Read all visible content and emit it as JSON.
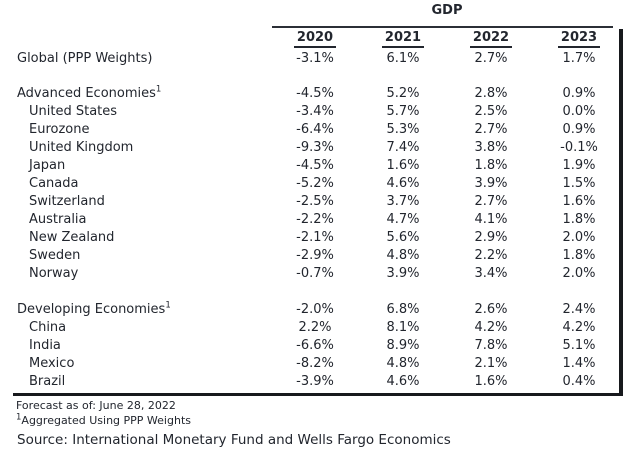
{
  "colors": {
    "background": "#ffffff",
    "text": "#22262e",
    "rule": "#17191d"
  },
  "chart_data": {
    "type": "table",
    "title": "GDP",
    "columns": [
      "2020",
      "2021",
      "2022",
      "2023"
    ],
    "rows": [
      {
        "label": "Global (PPP Weights)",
        "sup": "",
        "indent": false,
        "gap_before": 0,
        "values": [
          "-3.1%",
          "6.1%",
          "2.7%",
          "1.7%"
        ]
      },
      {
        "label": "Advanced Economies",
        "sup": "1",
        "indent": false,
        "gap_before": 17,
        "values": [
          "-4.5%",
          "5.2%",
          "2.8%",
          "0.9%"
        ]
      },
      {
        "label": "United States",
        "sup": "",
        "indent": true,
        "gap_before": 0,
        "values": [
          "-3.4%",
          "5.7%",
          "2.5%",
          "0.0%"
        ]
      },
      {
        "label": "Eurozone",
        "sup": "",
        "indent": true,
        "gap_before": 0,
        "values": [
          "-6.4%",
          "5.3%",
          "2.7%",
          "0.9%"
        ]
      },
      {
        "label": "United Kingdom",
        "sup": "",
        "indent": true,
        "gap_before": 0,
        "values": [
          "-9.3%",
          "7.4%",
          "3.8%",
          "-0.1%"
        ]
      },
      {
        "label": "Japan",
        "sup": "",
        "indent": true,
        "gap_before": 0,
        "values": [
          "-4.5%",
          "1.6%",
          "1.8%",
          "1.9%"
        ]
      },
      {
        "label": "Canada",
        "sup": "",
        "indent": true,
        "gap_before": 0,
        "values": [
          "-5.2%",
          "4.6%",
          "3.9%",
          "1.5%"
        ]
      },
      {
        "label": "Switzerland",
        "sup": "",
        "indent": true,
        "gap_before": 0,
        "values": [
          "-2.5%",
          "3.7%",
          "2.7%",
          "1.6%"
        ]
      },
      {
        "label": "Australia",
        "sup": "",
        "indent": true,
        "gap_before": 0,
        "values": [
          "-2.2%",
          "4.7%",
          "4.1%",
          "1.8%"
        ]
      },
      {
        "label": "New Zealand",
        "sup": "",
        "indent": true,
        "gap_before": 0,
        "values": [
          "-2.1%",
          "5.6%",
          "2.9%",
          "2.0%"
        ]
      },
      {
        "label": "Sweden",
        "sup": "",
        "indent": true,
        "gap_before": 0,
        "values": [
          "-2.9%",
          "4.8%",
          "2.2%",
          "1.8%"
        ]
      },
      {
        "label": "Norway",
        "sup": "",
        "indent": true,
        "gap_before": 0,
        "values": [
          "-0.7%",
          "3.9%",
          "3.4%",
          "2.0%"
        ]
      },
      {
        "label": "Developing Economies",
        "sup": "1",
        "indent": false,
        "gap_before": 18,
        "values": [
          "-2.0%",
          "6.8%",
          "2.6%",
          "2.4%"
        ]
      },
      {
        "label": "China",
        "sup": "",
        "indent": true,
        "gap_before": 0,
        "values": [
          "2.2%",
          "8.1%",
          "4.2%",
          "4.2%"
        ]
      },
      {
        "label": "India",
        "sup": "",
        "indent": true,
        "gap_before": 0,
        "values": [
          "-6.6%",
          "8.9%",
          "7.8%",
          "5.1%"
        ]
      },
      {
        "label": "Mexico",
        "sup": "",
        "indent": true,
        "gap_before": 0,
        "values": [
          "-8.2%",
          "4.8%",
          "2.1%",
          "1.4%"
        ]
      },
      {
        "label": "Brazil",
        "sup": "",
        "indent": true,
        "gap_before": 0,
        "values": [
          "-3.9%",
          "4.6%",
          "1.6%",
          "0.4%"
        ]
      }
    ],
    "footnotes": [
      {
        "sup": "",
        "text": "Forecast as of: June 28, 2022"
      },
      {
        "sup": "1",
        "text": "Aggregated Using PPP Weights"
      }
    ],
    "source": "Source: International Monetary Fund and Wells Fargo Economics",
    "layout": {
      "legend_position": "none",
      "grid": "off",
      "value_alignment": "center",
      "year_headers_underlined": true
    }
  }
}
